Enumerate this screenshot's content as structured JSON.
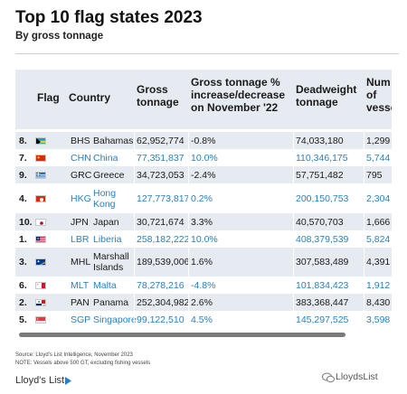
{
  "header": {
    "title": "Top 10 flag states 2023",
    "subtitle": "By gross tonnage"
  },
  "table": {
    "columns": {
      "flag": "Flag",
      "country": "Country",
      "gross_tonnage": "Gross\ntonnage",
      "pct_change": "Gross tonnage %\nincrease/decrease\non November '22",
      "deadweight": "Deadweight\ntonnage",
      "vessels": "Num\nof\nvesse"
    },
    "rows": [
      {
        "rank": "8.",
        "flag": "bahamas-flag-icon",
        "code": "BHS",
        "country": "Bahamas",
        "gt": "62,952,774",
        "pct": "-0.8%",
        "dwt": "74,033,180",
        "vessels": "1,299",
        "blue": false
      },
      {
        "rank": "7.",
        "flag": "china-flag-icon",
        "code": "CHN",
        "country": "China",
        "gt": "77,351,837",
        "pct": "10.0%",
        "dwt": "110,346,175",
        "vessels": "5,744",
        "blue": true
      },
      {
        "rank": "9.",
        "flag": "greece-flag-icon",
        "code": "GRC",
        "country": "Greece",
        "gt": "34,723,053",
        "pct": "-2.4%",
        "dwt": "57,751,482",
        "vessels": "795",
        "blue": false
      },
      {
        "rank": "4.",
        "flag": "hong-kong-flag-icon",
        "code": "HKG",
        "country": "Hong\nKong",
        "gt": "127,773,817",
        "pct": "0.2%",
        "dwt": "200,150,753",
        "vessels": "2,304",
        "blue": true
      },
      {
        "rank": "10.",
        "flag": "japan-flag-icon",
        "code": "JPN",
        "country": "Japan",
        "gt": "30,721,674",
        "pct": "3.3%",
        "dwt": "40,570,703",
        "vessels": "1,666",
        "blue": false
      },
      {
        "rank": "1.",
        "flag": "liberia-flag-icon",
        "code": "LBR",
        "country": "Liberia",
        "gt": "258,182,222",
        "pct": "10.0%",
        "dwt": "408,379,539",
        "vessels": "5,824",
        "blue": true
      },
      {
        "rank": "3.",
        "flag": "marshall-islands-flag-icon",
        "code": "MHL",
        "country": "Marshall\nIslands",
        "gt": "189,539,006",
        "pct": "1.6%",
        "dwt": "307,583,489",
        "vessels": "4,391",
        "blue": false
      },
      {
        "rank": "6.",
        "flag": "malta-flag-icon",
        "code": "MLT",
        "country": "Malta",
        "gt": "78,278,216",
        "pct": "-4.8%",
        "dwt": "101,834,423",
        "vessels": "1,912",
        "blue": true
      },
      {
        "rank": "2.",
        "flag": "panama-flag-icon",
        "code": "PAN",
        "country": "Panama",
        "gt": "252,304,982",
        "pct": "2.6%",
        "dwt": "383,368,447",
        "vessels": "8,430",
        "blue": false
      },
      {
        "rank": "5.",
        "flag": "singapore-flag-icon",
        "code": "SGP",
        "country": "Singapore",
        "gt": "99,122,510",
        "pct": "4.5%",
        "dwt": "145,297,525",
        "vessels": "3,598",
        "blue": true
      }
    ]
  },
  "footer": {
    "source": "Source: Lloyd's List Intelligence, November 2023",
    "note": "NOTE: Vessels above 500 GT, excluding fishing vessels",
    "brand": "Lloyd's List",
    "watermark": "LloydsList"
  },
  "colors": {
    "header_bg": "#e6ebf1",
    "accent_blue": "#2a7fc1",
    "scrollbar": "#7a7a7a"
  }
}
